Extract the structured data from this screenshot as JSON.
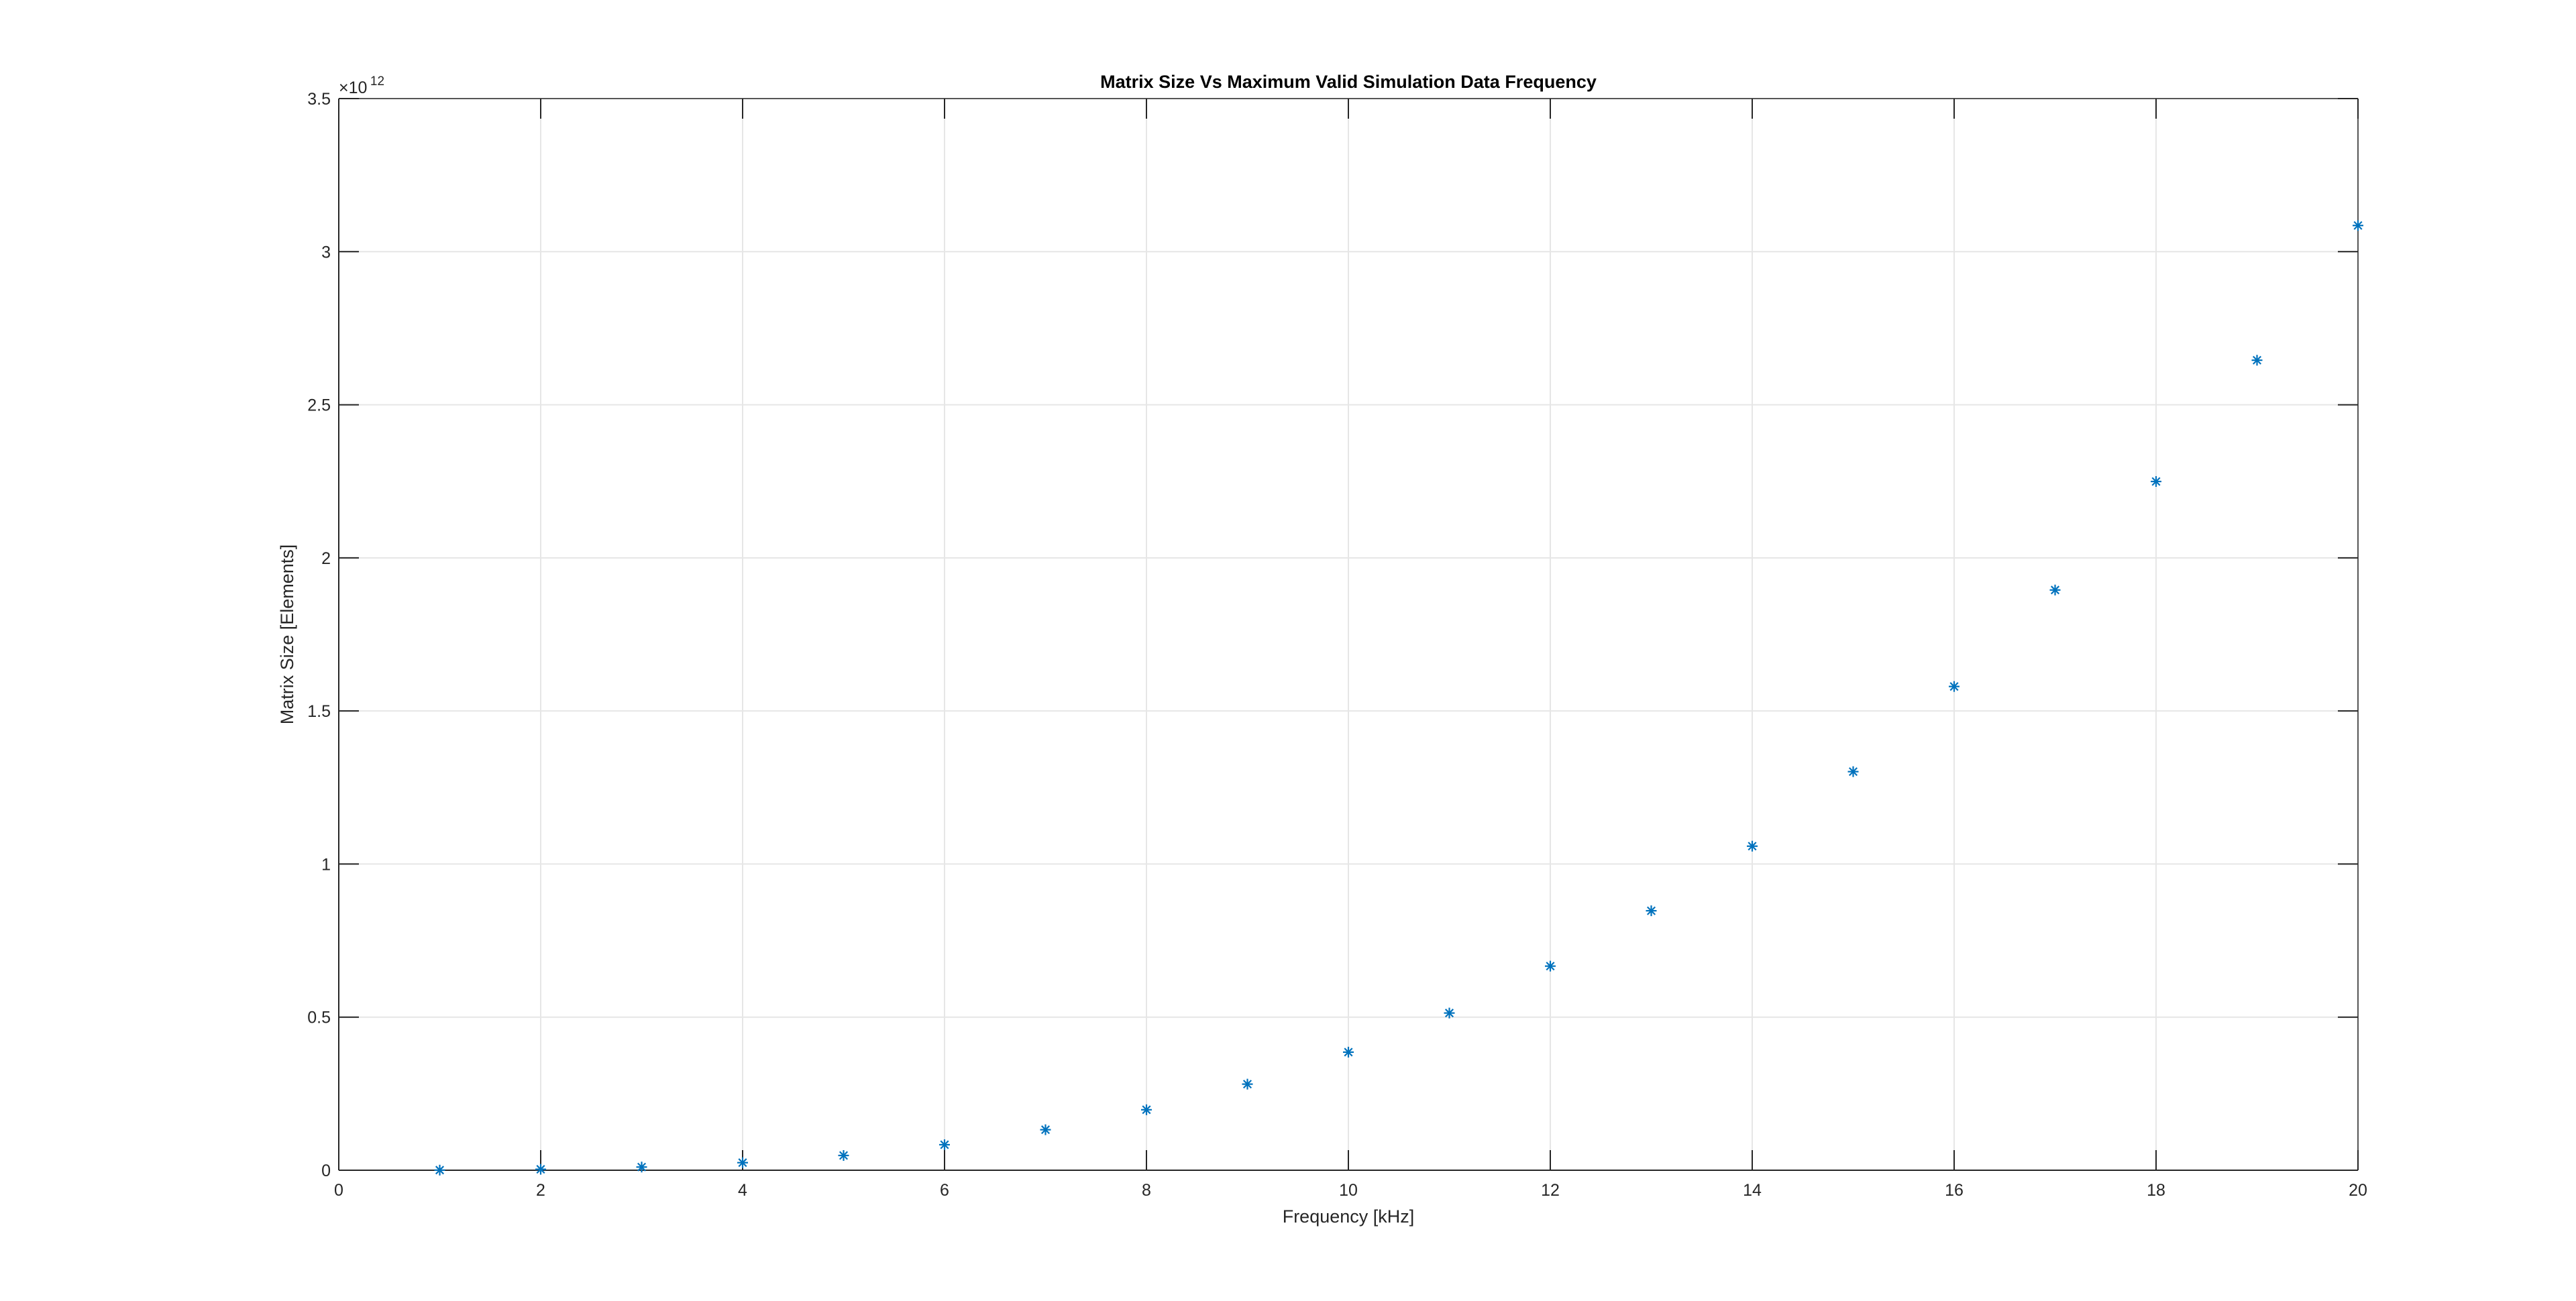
{
  "chart_data": {
    "type": "scatter",
    "title": "Matrix Size Vs Maximum Valid Simulation Data Frequency",
    "xlabel": "Frequency [kHz]",
    "ylabel": "Matrix Size [Elements]",
    "y_exponent": {
      "base": "×10",
      "power": "12"
    },
    "xlim": [
      0,
      20
    ],
    "ylim": [
      0,
      3.5
    ],
    "xticks": [
      0,
      2,
      4,
      6,
      8,
      10,
      12,
      14,
      16,
      18,
      20
    ],
    "xtick_labels": [
      "0",
      "2",
      "4",
      "6",
      "8",
      "10",
      "12",
      "14",
      "16",
      "18",
      "20"
    ],
    "yticks": [
      0,
      0.5,
      1,
      1.5,
      2,
      2.5,
      3,
      3.5
    ],
    "ytick_labels": [
      "0",
      "0.5",
      "1",
      "1.5",
      "2",
      "2.5",
      "3",
      "3.5"
    ],
    "grid": true,
    "marker": "asterisk",
    "series": [
      {
        "x": [
          1,
          2,
          3,
          4,
          5,
          6,
          7,
          8,
          9,
          10,
          11,
          12,
          13,
          14,
          15,
          16,
          17,
          18,
          19,
          20
        ],
        "y": [
          0.0004,
          0.0031,
          0.0104,
          0.0247,
          0.0482,
          0.0833,
          0.1323,
          0.1975,
          0.2812,
          0.3857,
          0.5134,
          0.6666,
          0.8474,
          1.0584,
          1.3018,
          1.5799,
          1.895,
          2.2494,
          2.6455,
          3.0855
        ],
        "color": "#0072BD"
      }
    ]
  }
}
